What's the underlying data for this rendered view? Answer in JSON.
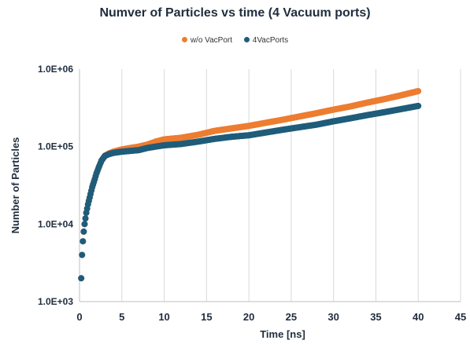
{
  "chart_data": {
    "type": "scatter",
    "title": "Numver of Particles vs time (4 Vacuum ports)",
    "xlabel": "Time [ns]",
    "ylabel": "Number of Particles",
    "xlim": [
      0,
      45
    ],
    "ylim": [
      1000,
      1000000
    ],
    "yscale": "log",
    "x_ticks": [
      "0",
      "5",
      "10",
      "15",
      "20",
      "25",
      "30",
      "35",
      "40",
      "45"
    ],
    "y_ticks": [
      "1.0E+03",
      "1.0E+04",
      "1.0E+05",
      "1.0E+06"
    ],
    "grid": "vertical",
    "legend_position": "top",
    "series": [
      {
        "name": "w/o VacPort",
        "color": "#ED7D31",
        "points": [
          [
            0.2,
            2000
          ],
          [
            0.3,
            4000
          ],
          [
            0.4,
            6000
          ],
          [
            0.5,
            8000
          ],
          [
            0.6,
            10000
          ],
          [
            0.8,
            14000
          ],
          [
            1.0,
            18000
          ],
          [
            1.2,
            22000
          ],
          [
            1.5,
            30000
          ],
          [
            1.8,
            38000
          ],
          [
            2.0,
            45000
          ],
          [
            2.3,
            55000
          ],
          [
            2.6,
            66000
          ],
          [
            3.0,
            76000
          ],
          [
            3.5,
            82000
          ],
          [
            4.0,
            86000
          ],
          [
            5,
            92000
          ],
          [
            6,
            96000
          ],
          [
            7,
            100000
          ],
          [
            8,
            106000
          ],
          [
            9,
            116000
          ],
          [
            10,
            124000
          ],
          [
            12,
            130000
          ],
          [
            14,
            142000
          ],
          [
            16,
            160000
          ],
          [
            18,
            172000
          ],
          [
            20,
            185000
          ],
          [
            22,
            203000
          ],
          [
            24,
            222000
          ],
          [
            26,
            245000
          ],
          [
            28,
            270000
          ],
          [
            30,
            300000
          ],
          [
            32,
            330000
          ],
          [
            34,
            370000
          ],
          [
            36,
            410000
          ],
          [
            38,
            460000
          ],
          [
            40,
            520000
          ]
        ]
      },
      {
        "name": "4VacPorts",
        "color": "#1F5C7A",
        "points": [
          [
            0.2,
            2000
          ],
          [
            0.3,
            4000
          ],
          [
            0.4,
            6000
          ],
          [
            0.5,
            8000
          ],
          [
            0.6,
            10000
          ],
          [
            0.8,
            14000
          ],
          [
            1.0,
            18000
          ],
          [
            1.2,
            22000
          ],
          [
            1.5,
            30000
          ],
          [
            1.8,
            38000
          ],
          [
            2.0,
            45000
          ],
          [
            2.3,
            55000
          ],
          [
            2.6,
            66000
          ],
          [
            3.0,
            76000
          ],
          [
            3.5,
            80000
          ],
          [
            4.0,
            83000
          ],
          [
            5,
            86000
          ],
          [
            6,
            88000
          ],
          [
            7,
            90000
          ],
          [
            8,
            96000
          ],
          [
            9,
            100000
          ],
          [
            10,
            104000
          ],
          [
            12,
            108000
          ],
          [
            14,
            116000
          ],
          [
            16,
            126000
          ],
          [
            18,
            134000
          ],
          [
            20,
            140000
          ],
          [
            22,
            152000
          ],
          [
            24,
            165000
          ],
          [
            26,
            178000
          ],
          [
            28,
            192000
          ],
          [
            30,
            212000
          ],
          [
            32,
            232000
          ],
          [
            34,
            255000
          ],
          [
            36,
            278000
          ],
          [
            38,
            305000
          ],
          [
            40,
            335000
          ]
        ]
      }
    ]
  }
}
